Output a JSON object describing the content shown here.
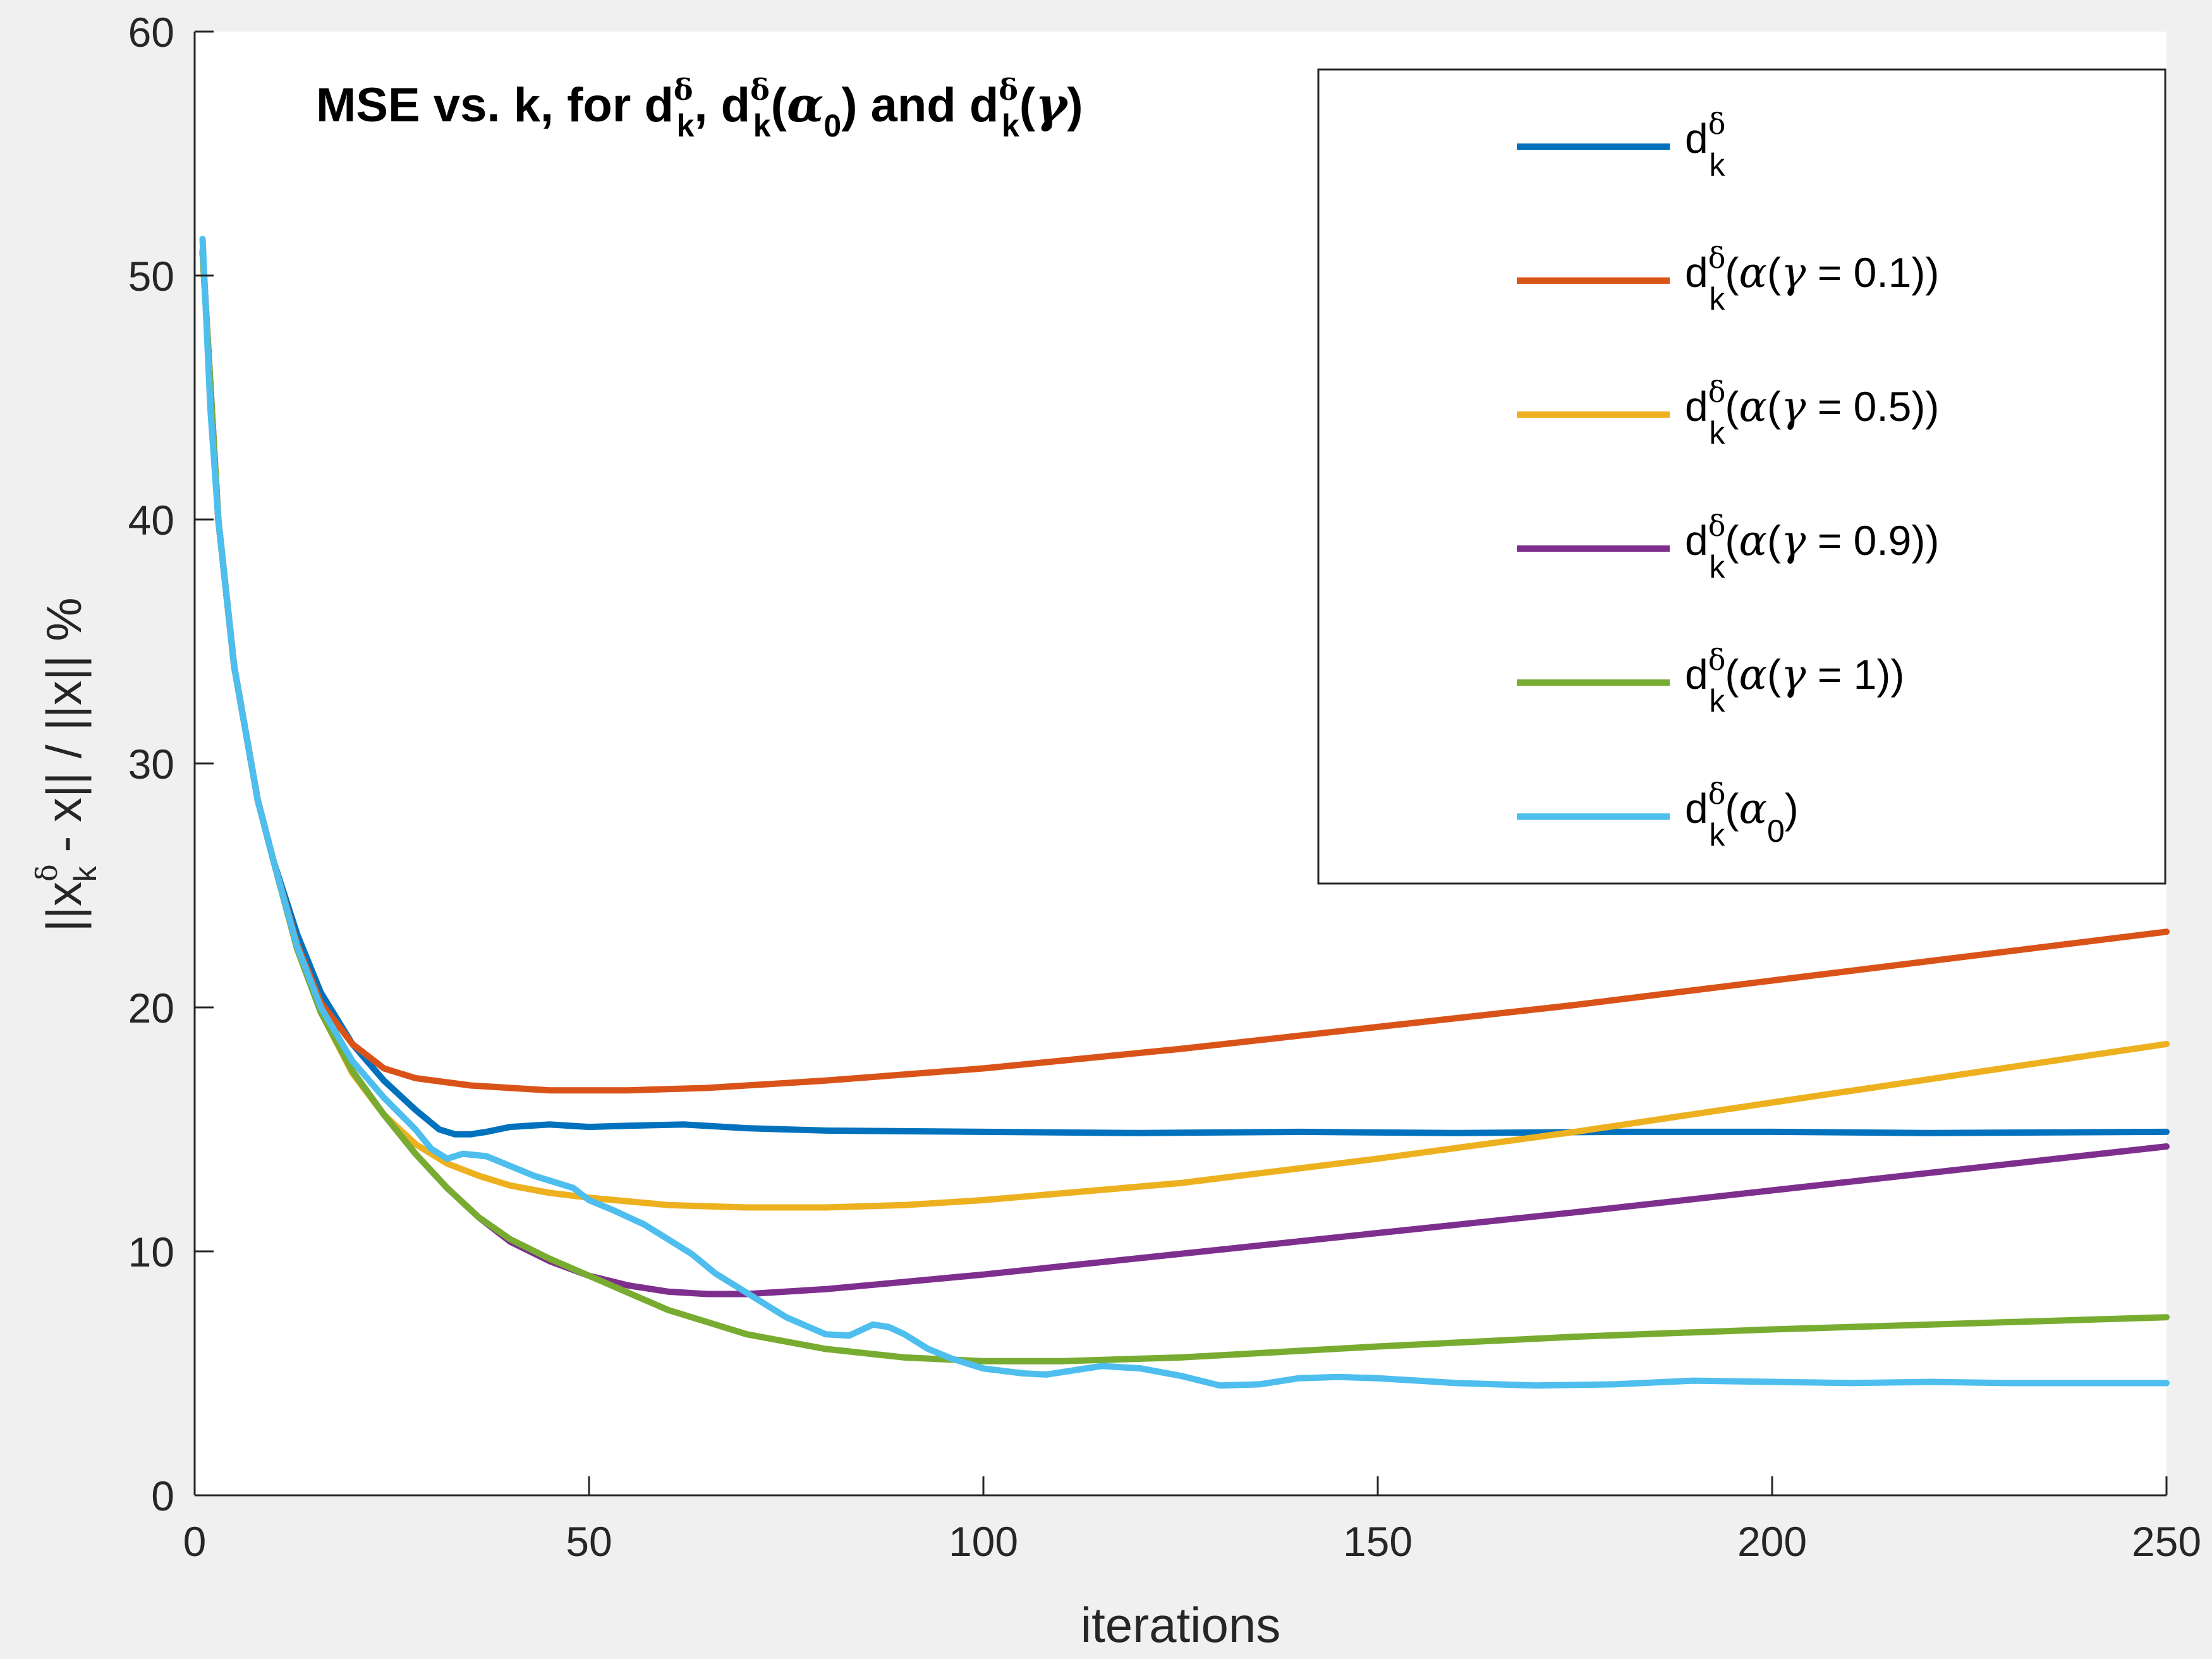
{
  "chart_data": {
    "type": "line",
    "title": "MSE vs. k, for d_k^δ, d_k^δ(α_0) and d_k^δ(γ)",
    "title_parts": [
      "MSE vs. k, for d",
      "δ",
      "k",
      ", d",
      "δ",
      "k",
      "(",
      "α",
      "0",
      ") and d",
      "δ",
      "k",
      "(",
      "γ",
      ")"
    ],
    "xlabel": "iterations",
    "ylabel_parts": [
      "||x",
      "δ",
      "k",
      " - x|| / ||x|| %"
    ],
    "xlim": [
      0,
      250
    ],
    "ylim": [
      0,
      60
    ],
    "xticks": [
      0,
      50,
      100,
      150,
      200,
      250
    ],
    "yticks": [
      0,
      10,
      20,
      30,
      40,
      50,
      60
    ],
    "xtick_labels": [
      "0",
      "50",
      "100",
      "150",
      "200",
      "250"
    ],
    "ytick_labels": [
      "0",
      "10",
      "20",
      "30",
      "40",
      "50",
      "60"
    ],
    "grid": false,
    "legend_position": "top-right",
    "series": [
      {
        "name": "d_k^δ",
        "legend_parts": [
          "d",
          "δ",
          "k",
          ""
        ],
        "color": "#0072BD",
        "x": [
          1,
          3,
          5,
          8,
          10,
          13,
          16,
          20,
          24,
          28,
          31,
          33,
          35,
          37,
          40,
          45,
          50,
          55,
          62,
          70,
          80,
          100,
          120,
          140,
          160,
          180,
          200,
          220,
          250
        ],
        "y": [
          51,
          40,
          34,
          28.5,
          26,
          23,
          20.6,
          18.5,
          17,
          15.8,
          15,
          14.8,
          14.8,
          14.9,
          15.1,
          15.2,
          15.1,
          15.15,
          15.2,
          15.05,
          14.95,
          14.9,
          14.85,
          14.9,
          14.85,
          14.9,
          14.9,
          14.85,
          14.9
        ]
      },
      {
        "name": "d_k^δ(α(γ = 0.1))",
        "legend_parts": [
          "d",
          "δ",
          "k",
          "(α(γ = 0.1))"
        ],
        "color": "#D95319",
        "x": [
          1,
          3,
          5,
          8,
          10,
          13,
          16,
          20,
          24,
          28,
          35,
          45,
          55,
          65,
          80,
          100,
          125,
          150,
          175,
          200,
          225,
          250
        ],
        "y": [
          51,
          40,
          34,
          28.5,
          26,
          22.6,
          20.2,
          18.5,
          17.5,
          17.1,
          16.8,
          16.6,
          16.6,
          16.7,
          17,
          17.5,
          18.3,
          19.2,
          20.1,
          21.1,
          22.1,
          23.1
        ]
      },
      {
        "name": "d_k^δ(α(γ = 0.5))",
        "legend_parts": [
          "d",
          "δ",
          "k",
          "(α(γ = 0.5))"
        ],
        "color": "#EDB120",
        "x": [
          1,
          3,
          5,
          8,
          10,
          13,
          16,
          20,
          24,
          28,
          32,
          36,
          40,
          45,
          50,
          60,
          70,
          80,
          90,
          100,
          125,
          150,
          175,
          200,
          225,
          250
        ],
        "y": [
          51,
          40,
          34,
          28.5,
          26,
          22.4,
          19.8,
          17.3,
          15.6,
          14.4,
          13.6,
          13.1,
          12.7,
          12.4,
          12.2,
          11.9,
          11.8,
          11.8,
          11.9,
          12.1,
          12.8,
          13.8,
          14.9,
          16.1,
          17.3,
          18.5
        ]
      },
      {
        "name": "d_k^δ(α(γ = 0.9))",
        "legend_parts": [
          "d",
          "δ",
          "k",
          "(α(γ = 0.9))"
        ],
        "color": "#7E2F8E",
        "x": [
          1,
          3,
          5,
          8,
          10,
          13,
          16,
          20,
          24,
          28,
          32,
          36,
          40,
          45,
          50,
          55,
          60,
          65,
          70,
          80,
          90,
          100,
          125,
          150,
          175,
          200,
          225,
          250
        ],
        "y": [
          51,
          40,
          34,
          28.5,
          26,
          22.4,
          19.8,
          17.4,
          15.6,
          14,
          12.6,
          11.4,
          10.4,
          9.6,
          9,
          8.6,
          8.35,
          8.25,
          8.25,
          8.45,
          8.75,
          9.05,
          9.9,
          10.75,
          11.6,
          12.5,
          13.4,
          14.3
        ]
      },
      {
        "name": "d_k^δ(α(γ = 1))",
        "legend_parts": [
          "d",
          "δ",
          "k",
          "(α(γ = 1))"
        ],
        "color": "#77AC30",
        "x": [
          1,
          3,
          5,
          8,
          10,
          13,
          16,
          20,
          24,
          28,
          32,
          36,
          40,
          45,
          50,
          55,
          60,
          70,
          80,
          90,
          100,
          110,
          125,
          150,
          175,
          200,
          225,
          250
        ],
        "y": [
          51,
          40,
          34,
          28.5,
          26,
          22.4,
          19.8,
          17.4,
          15.6,
          14,
          12.6,
          11.4,
          10.5,
          9.7,
          9,
          8.3,
          7.6,
          6.6,
          6,
          5.65,
          5.5,
          5.5,
          5.65,
          6.1,
          6.5,
          6.8,
          7.05,
          7.3
        ]
      },
      {
        "name": "d_k^δ(α_0)",
        "legend_parts": [
          "d",
          "δ",
          "k",
          "(α",
          "0",
          ")"
        ],
        "color": "#4DBEEE",
        "x": [
          1,
          2,
          3,
          5,
          8,
          10,
          13,
          16,
          20,
          24,
          28,
          30,
          32,
          34,
          37,
          40,
          43,
          46,
          48,
          50,
          53,
          57,
          60,
          63,
          66,
          70,
          75,
          80,
          83,
          86,
          88,
          90,
          93,
          96,
          100,
          105,
          108,
          112,
          115,
          120,
          125,
          130,
          135,
          140,
          145,
          150,
          160,
          170,
          180,
          190,
          200,
          210,
          220,
          230,
          240,
          250
        ],
        "y": [
          51.5,
          44.5,
          40,
          34,
          28.5,
          26,
          22.5,
          20,
          17.8,
          16.3,
          15,
          14.2,
          13.8,
          14,
          13.9,
          13.5,
          13.1,
          12.8,
          12.6,
          12.1,
          11.7,
          11.1,
          10.5,
          9.9,
          9.1,
          8.3,
          7.3,
          6.6,
          6.55,
          7.0,
          6.9,
          6.6,
          6.0,
          5.6,
          5.2,
          5.0,
          4.95,
          5.15,
          5.3,
          5.2,
          4.9,
          4.5,
          4.55,
          4.8,
          4.85,
          4.8,
          4.6,
          4.5,
          4.55,
          4.7,
          4.65,
          4.6,
          4.65,
          4.6,
          4.6,
          4.6
        ]
      }
    ]
  }
}
